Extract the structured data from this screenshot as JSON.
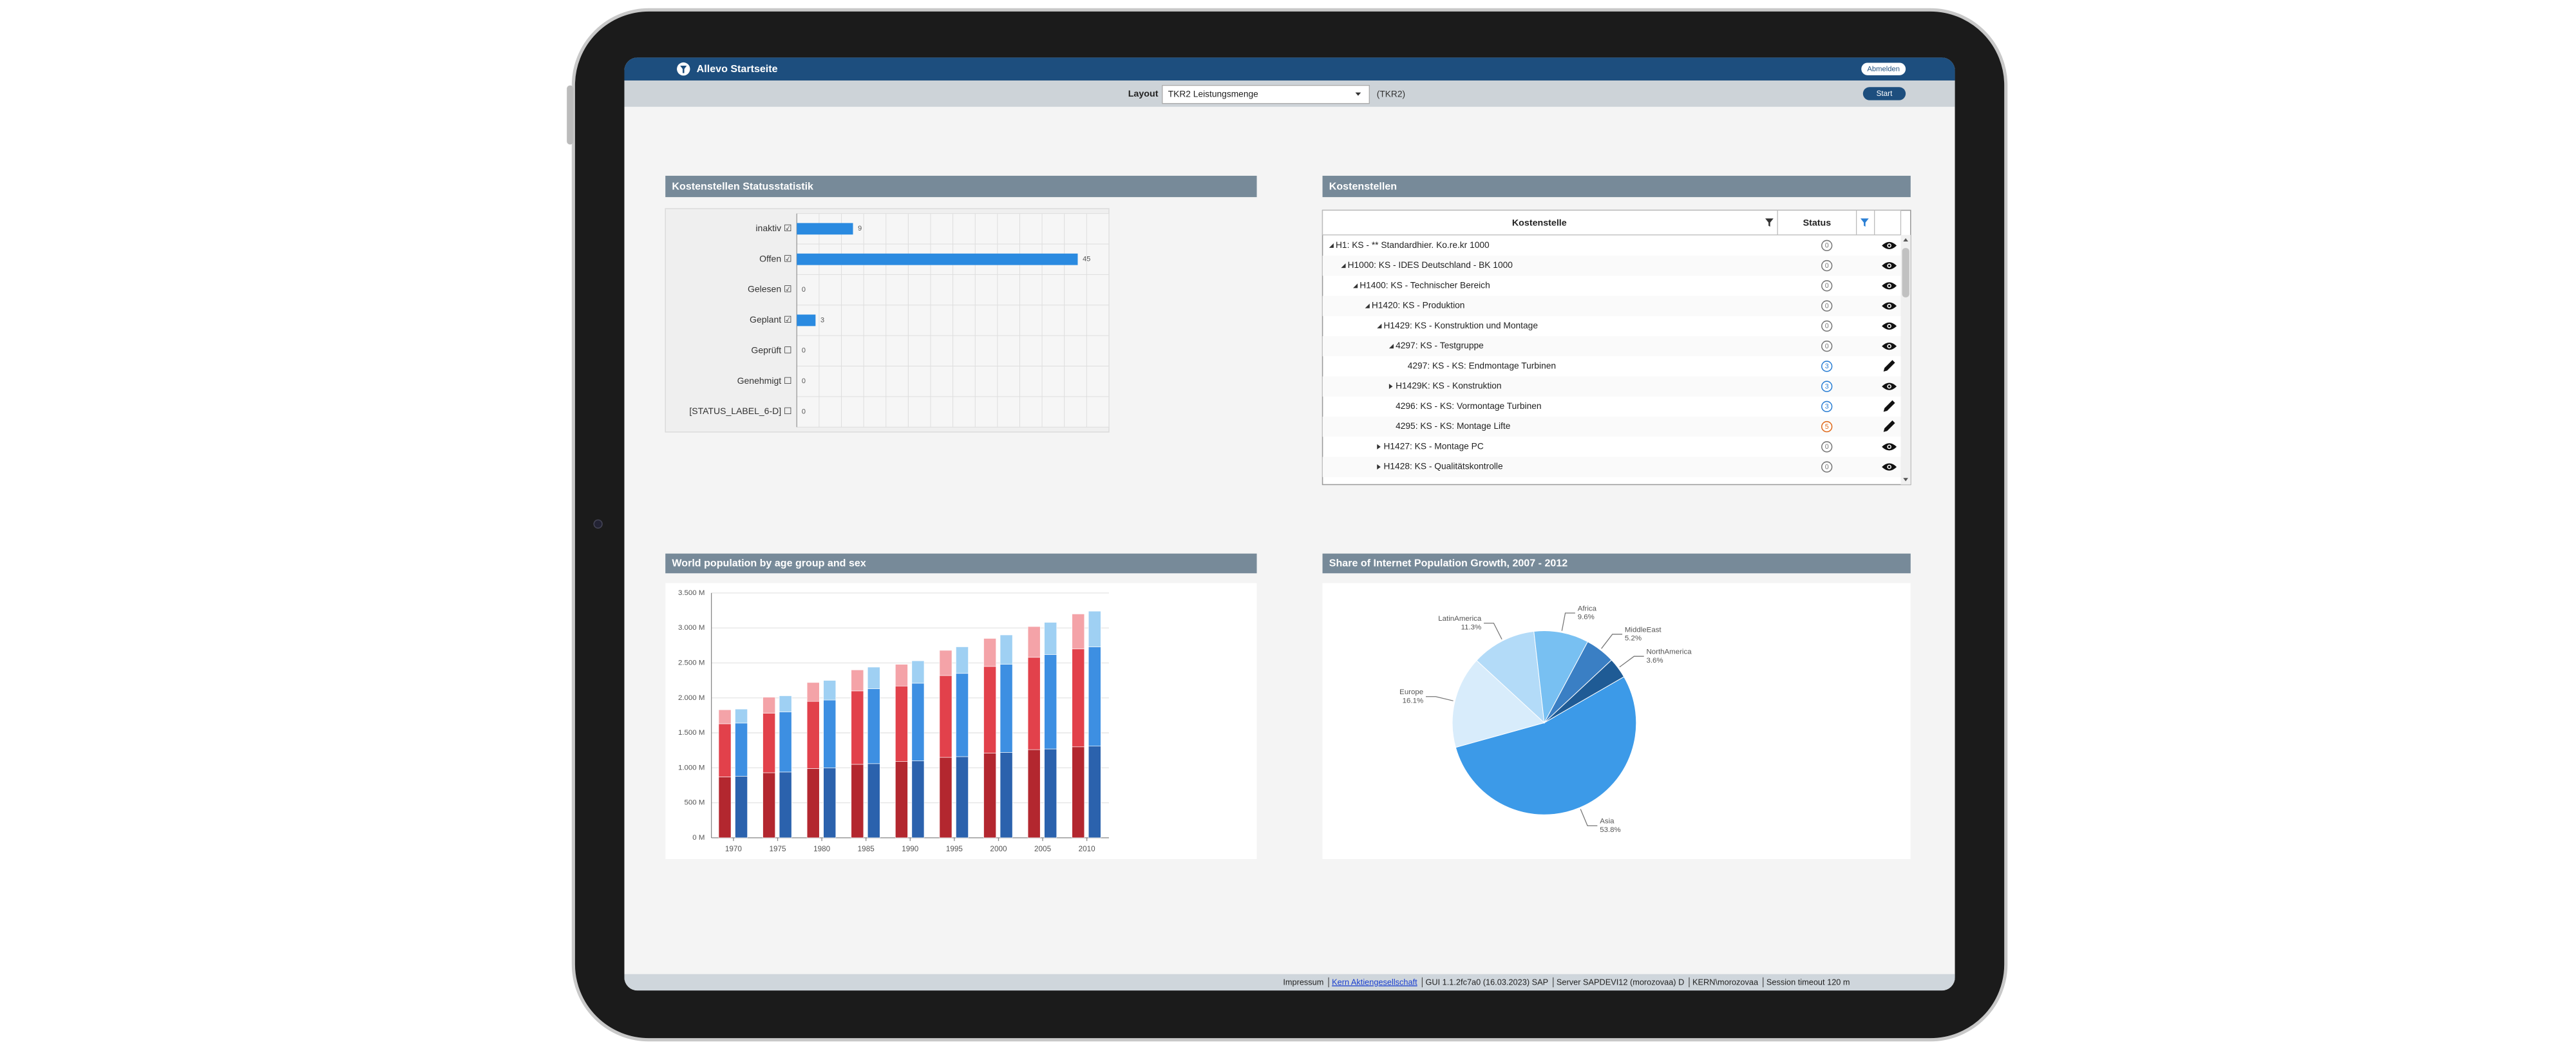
{
  "header": {
    "title": "Allevo Startseite",
    "logout": "Abmelden"
  },
  "toolbar": {
    "layout_label": "Layout",
    "layout_value": "TKR2 Leistungsmenge",
    "layout_code": "(TKR2)",
    "start": "Start"
  },
  "chart_data": [
    {
      "type": "bar",
      "orientation": "horizontal",
      "title": "Kostenstellen Statusstatistik",
      "categories": [
        "inaktiv ☑",
        "Offen ☑",
        "Gelesen ☑",
        "Geplant ☑",
        "Geprüft ☐",
        "Genehmigt ☐",
        "[STATUS_LABEL_6-D] ☐"
      ],
      "values": [
        9,
        45,
        0,
        3,
        0,
        0,
        0
      ],
      "color": "#2a8ae0",
      "xlim": [
        0,
        50
      ],
      "grid": true
    },
    {
      "type": "bar",
      "stacked": true,
      "title": "World population by age group and sex",
      "categories": [
        "1970",
        "1975",
        "1980",
        "1985",
        "1990",
        "1995",
        "2000",
        "2005",
        "2010"
      ],
      "series": [
        {
          "stack": 0,
          "color": "#b3272f",
          "values": [
            870,
            930,
            990,
            1050,
            1090,
            1150,
            1210,
            1260,
            1300
          ]
        },
        {
          "stack": 0,
          "color": "#e2414b",
          "values": [
            760,
            850,
            960,
            1050,
            1080,
            1170,
            1240,
            1320,
            1400
          ]
        },
        {
          "stack": 0,
          "color": "#f4a3a8",
          "values": [
            200,
            230,
            270,
            300,
            310,
            360,
            400,
            440,
            500
          ]
        },
        {
          "stack": 1,
          "color": "#2b62ad",
          "values": [
            880,
            940,
            1000,
            1060,
            1100,
            1160,
            1220,
            1270,
            1310
          ]
        },
        {
          "stack": 1,
          "color": "#3d8fe2",
          "values": [
            760,
            860,
            970,
            1070,
            1110,
            1190,
            1260,
            1350,
            1420
          ]
        },
        {
          "stack": 1,
          "color": "#9fd0f3",
          "values": [
            200,
            230,
            280,
            310,
            320,
            380,
            420,
            460,
            510
          ]
        }
      ],
      "ylim": [
        0,
        3500
      ],
      "yticks": [
        {
          "value": 0,
          "label": "0 M"
        },
        {
          "value": 500,
          "label": "500 M"
        },
        {
          "value": 1000,
          "label": "1.000 M"
        },
        {
          "value": 1500,
          "label": "1.500 M"
        },
        {
          "value": 2000,
          "label": "2.000 M"
        },
        {
          "value": 2500,
          "label": "2.500 M"
        },
        {
          "value": 3000,
          "label": "3.000 M"
        },
        {
          "value": 3500,
          "label": "3.500 M"
        }
      ],
      "grid": true
    },
    {
      "type": "pie",
      "title": "Share of Internet Population Growth, 2007 - 2012",
      "categories": [
        "Asia",
        "Europe",
        "LatinAmerica",
        "Africa",
        "MiddleEast",
        "NorthAmerica"
      ],
      "values": [
        53.8,
        16.1,
        11.3,
        9.6,
        5.2,
        3.6
      ],
      "value_labels": [
        "53.8%",
        "16.1%",
        "11.3%",
        "9.6%",
        "5.2%",
        "3.6%"
      ],
      "colors": [
        "#3c9ae8",
        "#d8ecfb",
        "#b3dbf8",
        "#78c0f2",
        "#3a7fc4",
        "#1f5b95"
      ]
    }
  ],
  "table": {
    "title": "Kostenstellen",
    "columns": [
      "Kostenstelle",
      "Status"
    ],
    "rows": [
      {
        "label": "H1: KS - ** Standardhier. Ko.re.kr 1000",
        "status": 0,
        "depth": 0,
        "state": "expanded",
        "action": "view"
      },
      {
        "label": "H1000: KS - IDES Deutschland - BK 1000",
        "status": 0,
        "depth": 1,
        "state": "expanded",
        "action": "view"
      },
      {
        "label": "H1400: KS - Technischer Bereich",
        "status": 0,
        "depth": 2,
        "state": "expanded",
        "action": "view"
      },
      {
        "label": "H1420: KS - Produktion",
        "status": 0,
        "depth": 3,
        "state": "expanded",
        "action": "view"
      },
      {
        "label": "H1429: KS - Konstruktion und Montage",
        "status": 0,
        "depth": 4,
        "state": "expanded",
        "action": "view"
      },
      {
        "label": "4297: KS - Testgruppe",
        "status": 0,
        "depth": 5,
        "state": "expanded",
        "action": "view"
      },
      {
        "label": "4297: KS - KS: Endmontage Turbinen",
        "status": 3,
        "depth": 6,
        "state": "leaf",
        "action": "edit"
      },
      {
        "label": "H1429K: KS - Konstruktion",
        "status": 3,
        "depth": 5,
        "state": "collapsed",
        "action": "view"
      },
      {
        "label": "4296: KS - KS: Vormontage Turbinen",
        "status": 3,
        "depth": 5,
        "state": "leaf",
        "action": "edit"
      },
      {
        "label": "4295: KS - KS: Montage Lifte",
        "status": 5,
        "depth": 5,
        "state": "leaf",
        "action": "edit"
      },
      {
        "label": "H1427: KS - Montage PC",
        "status": 0,
        "depth": 4,
        "state": "collapsed",
        "action": "view"
      },
      {
        "label": "H1428: KS - Qualitätskontrolle",
        "status": 0,
        "depth": 4,
        "state": "collapsed",
        "action": "view"
      }
    ]
  },
  "footer": {
    "imprint": "Impressum",
    "company": "Kern Aktiengesellschaft",
    "gui": "GUI 1.1.2fc7a0 (16.03.2023) SAP",
    "server": "Server SAPDEVI12 (morozovaa) D",
    "user": "KERN\\morozovaa",
    "session": "Session timeout 120 m"
  }
}
